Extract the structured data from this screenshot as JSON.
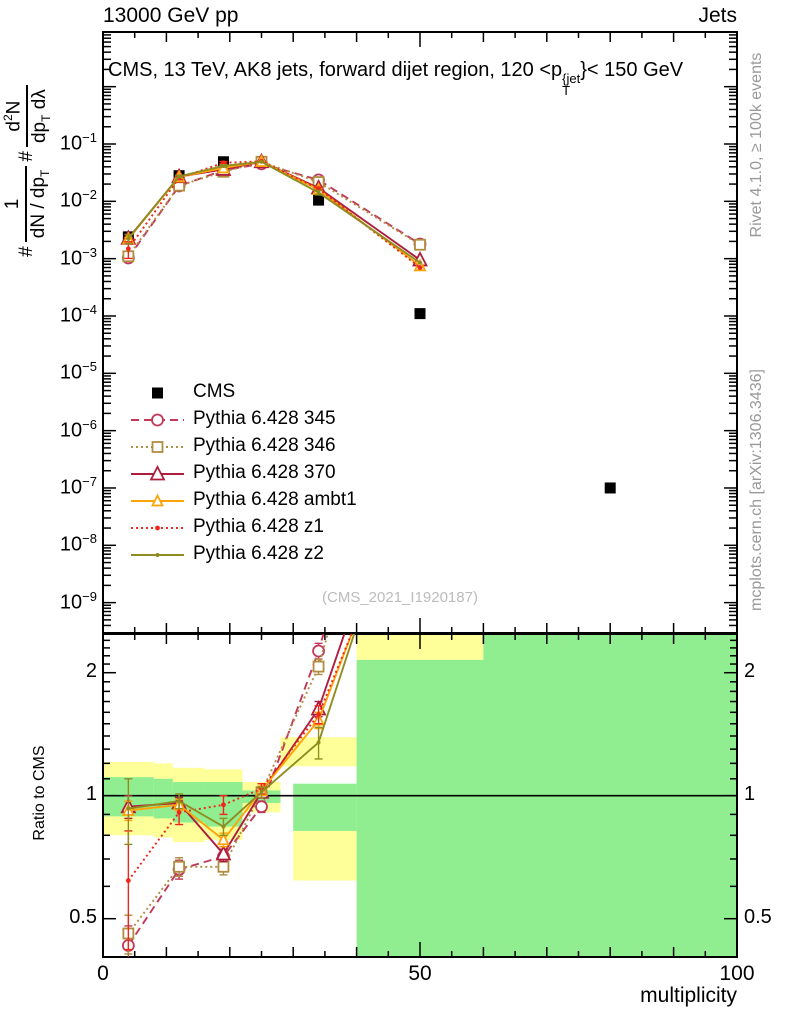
{
  "header": {
    "left": "13000 GeV pp",
    "right": "Jets"
  },
  "title": {
    "prefix": "CMS, 13 TeV, AK8 jets, forward dijet region, 120 <p",
    "sup": "{jet",
    "sub": "T",
    "suffix": "}< 150 GeV"
  },
  "ylabel": {
    "hash1": "#",
    "f1_num": "1",
    "f1_den": "dN / dp",
    "f1_den_sub": "T",
    "hash2": "#",
    "f2_num": "d",
    "f2_num_sup": "2",
    "f2_num_tail": "N",
    "f2_den": "dp",
    "f2_den_sub": "T",
    "f2_den_tail": " dλ"
  },
  "side_notes": {
    "top": "Rivet 4.1.0, ≥ 100k events",
    "bottom": "mcplots.cern.ch [arXiv:1306.3436]"
  },
  "watermark": "(CMS_2021_I1920187)",
  "ratio_ylabel": "Ratio to CMS",
  "xlabel": "multiplicity",
  "axes": {
    "x_range": [
      0,
      100
    ],
    "x_ticks": [
      0,
      50,
      100
    ],
    "main_y_exponents": [
      -1,
      -2,
      -3,
      -4,
      -5,
      -6,
      -7,
      -8,
      -9
    ],
    "ratio_ticks": [
      "2",
      "1",
      "0.5"
    ],
    "ratio_tick_values": [
      2,
      1,
      0.5
    ]
  },
  "colors": {
    "frame": "#000000",
    "cms": "#000000",
    "p345": "#c2385a",
    "p346": "#b08d3f",
    "p370": "#ad1d3c",
    "ambt1": "#ffa408",
    "z1": "#ef271b",
    "z2": "#8f8d1f",
    "band_yellow": "#ffff99",
    "band_green": "#90ee90",
    "gray_text": "#999999",
    "watermark": "#bcbcbc"
  },
  "chart_data": {
    "type": "line",
    "xlabel": "multiplicity",
    "ylabel_plain": "# 1/(dN/dp_T) # d^2N/(dp_T dλ)",
    "ratio_label": "Ratio to CMS",
    "main_y_log_range": [
      3.2e-10,
      9.0
    ],
    "ratio_y_log_range": [
      0.403,
      2.49
    ],
    "x": [
      4,
      12,
      19,
      25,
      34,
      50
    ],
    "cms": {
      "label": "CMS",
      "x": [
        4,
        12,
        19,
        25,
        34,
        50,
        80
      ],
      "y": [
        0.0024,
        0.028,
        0.049,
        0.048,
        0.0105,
        0.00011,
        1e-07
      ]
    },
    "series": [
      {
        "key": "p345",
        "label": "Pythia 6.428 345",
        "color": "#c2385a",
        "line": "dash",
        "marker": "circle-open",
        "y": [
          0.00103,
          0.0185,
          0.0348,
          0.0451,
          0.0237,
          0.0018
        ],
        "ratio": [
          0.43,
          0.66,
          0.71,
          0.94,
          2.26,
          16.4
        ],
        "ratio_err": [
          0.05,
          0.035,
          0.03,
          0.03,
          0.1,
          0
        ]
      },
      {
        "key": "p346",
        "label": "Pythia 6.428 346",
        "color": "#b08d3f",
        "line": "dot",
        "marker": "square-open",
        "y": [
          0.0011,
          0.0188,
          0.0328,
          0.049,
          0.0217,
          0.00175
        ],
        "ratio": [
          0.46,
          0.67,
          0.67,
          1.02,
          2.07,
          15.9
        ],
        "ratio_err": [
          0.05,
          0.035,
          0.03,
          0.03,
          0.09,
          0
        ]
      },
      {
        "key": "p370",
        "label": "Pythia 6.428 370",
        "color": "#ad1d3c",
        "line": "solid",
        "marker": "triangle-open-big",
        "y": [
          0.00226,
          0.0269,
          0.036,
          0.049,
          0.0171,
          0.00095
        ],
        "ratio": [
          0.94,
          0.96,
          0.72,
          1.02,
          1.63,
          8.6
        ],
        "ratio_err": [
          0.06,
          0.03,
          0.03,
          0.025,
          0.07,
          0
        ]
      },
      {
        "key": "ambt1",
        "label": "Pythia 6.428 ambt1",
        "color": "#ffa408",
        "line": "solid",
        "marker": "triangle-open-small",
        "y": [
          0.00221,
          0.0266,
          0.0382,
          0.0494,
          0.0161,
          0.00075
        ],
        "ratio": [
          0.92,
          0.95,
          0.78,
          1.03,
          1.53,
          6.8
        ],
        "ratio_err": [
          0.05,
          0.03,
          0.03,
          0.025,
          0.07,
          0
        ]
      },
      {
        "key": "z1",
        "label": "Pythia 6.428 z1",
        "color": "#ef271b",
        "line": "dot",
        "marker": "dot",
        "y": [
          0.00149,
          0.0255,
          0.047,
          0.0499,
          0.0166,
          0.0007
        ],
        "ratio": [
          0.62,
          0.91,
          0.95,
          1.04,
          1.58,
          6.4
        ],
        "ratio_err": [
          0.2,
          0.06,
          0.05,
          0.03,
          0.08,
          0
        ]
      },
      {
        "key": "z2",
        "label": "Pythia 6.428 z2",
        "color": "#8f8d1f",
        "line": "solid",
        "marker": "dot-small",
        "y": [
          0.00223,
          0.0272,
          0.0414,
          0.049,
          0.0142,
          0.00085
        ],
        "ratio": [
          0.93,
          0.97,
          0.84,
          1.02,
          1.35,
          7.7
        ],
        "ratio_err": [
          0.17,
          0.04,
          0.04,
          0.03,
          0.12,
          0
        ]
      }
    ],
    "bands": {
      "yellow": [
        [
          0,
          8,
          0.8,
          1.21
        ],
        [
          8,
          11,
          0.79,
          1.2
        ],
        [
          11,
          16,
          0.77,
          1.17
        ],
        [
          16,
          22,
          0.78,
          1.16
        ],
        [
          22,
          28,
          0.91,
          1.08
        ],
        [
          28,
          40,
          1.18,
          1.39
        ],
        [
          30,
          40,
          0.62,
          0.82
        ],
        [
          40,
          60,
          2.15,
          2.49
        ]
      ],
      "green": [
        [
          0,
          8,
          0.89,
          1.11
        ],
        [
          8,
          11,
          0.88,
          1.1
        ],
        [
          11,
          16,
          0.86,
          1.08
        ],
        [
          16,
          22,
          0.84,
          1.08
        ],
        [
          22,
          28,
          0.96,
          1.03
        ],
        [
          30,
          40,
          0.82,
          1.07
        ],
        [
          40,
          100,
          0.403,
          2.15
        ],
        [
          60,
          100,
          0.403,
          2.49
        ]
      ]
    },
    "legend_order": [
      "cms",
      "p345",
      "p346",
      "p370",
      "ambt1",
      "z1",
      "z2"
    ]
  }
}
